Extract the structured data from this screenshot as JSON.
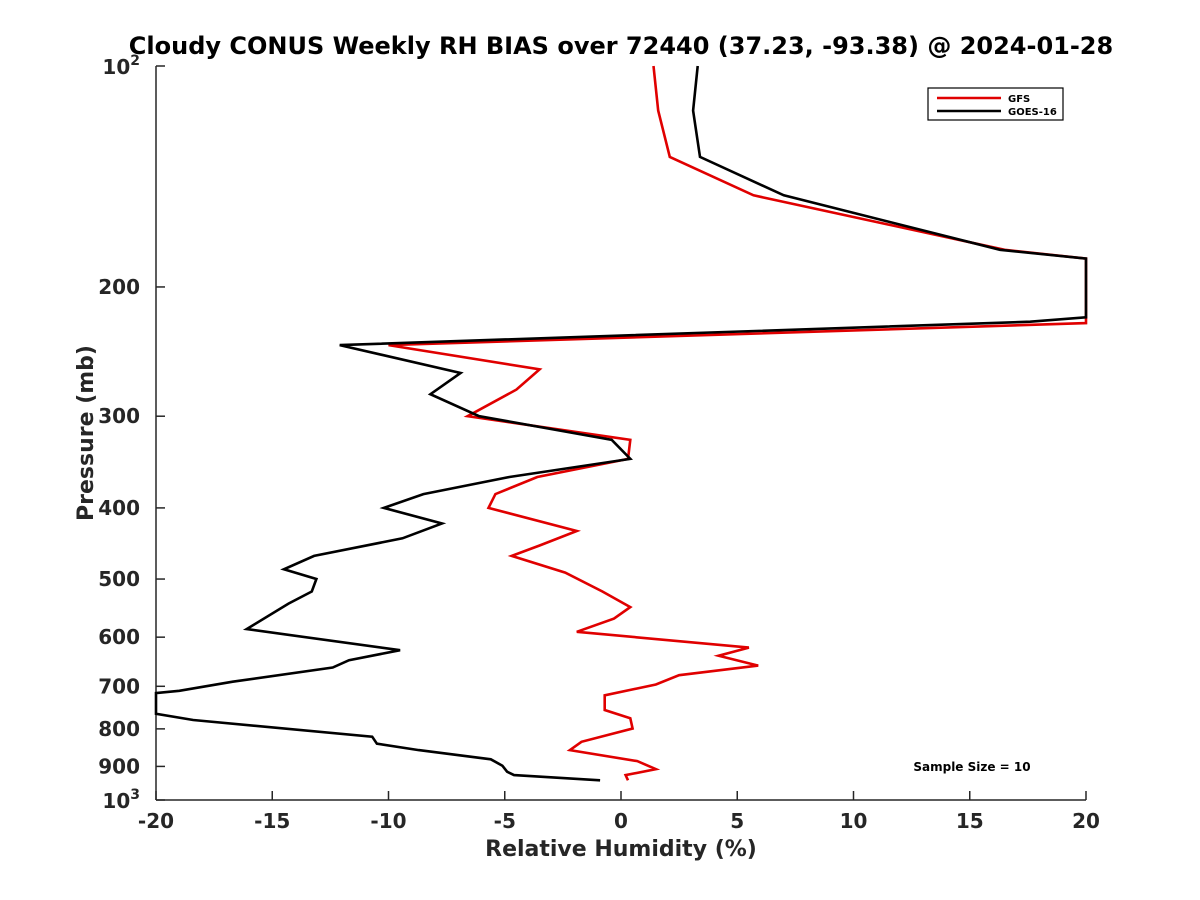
{
  "chart_data": {
    "type": "line",
    "title": "Cloudy CONUS Weekly RH BIAS over 72440 (37.23, -93.38) @ 2024-01-28",
    "xlabel": "Relative Humidity (%)",
    "ylabel": "Pressure (mb)",
    "xlim": [
      -20,
      20
    ],
    "ylim": [
      100,
      1000
    ],
    "yscale": "log",
    "y_reversed": true,
    "grid": false,
    "legend_position": "top-right",
    "x_ticks": [
      -20,
      -15,
      -10,
      -5,
      0,
      5,
      10,
      15,
      20
    ],
    "x_tick_labels": [
      "-20",
      "-15",
      "-10",
      "-5",
      "0",
      "5",
      "10",
      "15",
      "20"
    ],
    "y_ticks": [
      100,
      200,
      300,
      400,
      500,
      600,
      700,
      800,
      900,
      1000
    ],
    "y_tick_labels": [
      {
        "base": "10",
        "exp": "2"
      },
      {
        "base": "200",
        "exp": ""
      },
      {
        "base": "300",
        "exp": ""
      },
      {
        "base": "400",
        "exp": ""
      },
      {
        "base": "500",
        "exp": ""
      },
      {
        "base": "600",
        "exp": ""
      },
      {
        "base": "700",
        "exp": ""
      },
      {
        "base": "800",
        "exp": ""
      },
      {
        "base": "900",
        "exp": ""
      },
      {
        "base": "10",
        "exp": "3"
      }
    ],
    "annotation": "Sample Size = 10",
    "series": [
      {
        "name": "GFS",
        "color": "#e00000",
        "points": [
          [
            1.4,
            100
          ],
          [
            1.6,
            115
          ],
          [
            2.1,
            133
          ],
          [
            5.7,
            150
          ],
          [
            16.5,
            178
          ],
          [
            20.0,
            183
          ],
          [
            20.0,
            224
          ],
          [
            -10.0,
            240
          ],
          [
            -3.5,
            259
          ],
          [
            -4.5,
            276
          ],
          [
            -6.6,
            300
          ],
          [
            0.4,
            323
          ],
          [
            0.3,
            343
          ],
          [
            -3.6,
            363
          ],
          [
            -5.4,
            383
          ],
          [
            -5.7,
            400
          ],
          [
            -1.9,
            430
          ],
          [
            -3.5,
            450
          ],
          [
            -4.7,
            465
          ],
          [
            -2.4,
            490
          ],
          [
            -0.8,
            520
          ],
          [
            0.4,
            546
          ],
          [
            -0.3,
            566
          ],
          [
            -1.9,
            590
          ],
          [
            5.5,
            620
          ],
          [
            4.2,
            636
          ],
          [
            5.9,
            656
          ],
          [
            2.5,
            676
          ],
          [
            1.5,
            696
          ],
          [
            -0.7,
            720
          ],
          [
            -0.7,
            754
          ],
          [
            0.4,
            774
          ],
          [
            0.5,
            799
          ],
          [
            -1.7,
            833
          ],
          [
            -2.2,
            855
          ],
          [
            0.7,
            885
          ],
          [
            1.5,
            908
          ],
          [
            0.2,
            925
          ],
          [
            0.3,
            940
          ]
        ]
      },
      {
        "name": "GOES-16",
        "color": "#000000",
        "points": [
          [
            3.3,
            100
          ],
          [
            3.1,
            115
          ],
          [
            3.4,
            133
          ],
          [
            7.0,
            150
          ],
          [
            16.3,
            178
          ],
          [
            20.0,
            183
          ],
          [
            20.0,
            220
          ],
          [
            17.6,
            223
          ],
          [
            -12.1,
            240
          ],
          [
            -6.9,
            262
          ],
          [
            -8.2,
            280
          ],
          [
            -6.1,
            300
          ],
          [
            -0.4,
            323
          ],
          [
            0.4,
            343
          ],
          [
            -4.8,
            363
          ],
          [
            -8.5,
            383
          ],
          [
            -10.2,
            400
          ],
          [
            -7.7,
            420
          ],
          [
            -9.4,
            440
          ],
          [
            -13.2,
            465
          ],
          [
            -14.5,
            485
          ],
          [
            -13.1,
            500
          ],
          [
            -13.3,
            520
          ],
          [
            -14.3,
            540
          ],
          [
            -16.1,
            585
          ],
          [
            -9.5,
            625
          ],
          [
            -11.7,
            645
          ],
          [
            -12.4,
            660
          ],
          [
            -16.7,
            690
          ],
          [
            -19.0,
            710
          ],
          [
            -20.0,
            715
          ],
          [
            -20.0,
            763
          ],
          [
            -18.4,
            778
          ],
          [
            -10.7,
            820
          ],
          [
            -10.5,
            838
          ],
          [
            -8.7,
            855
          ],
          [
            -5.6,
            880
          ],
          [
            -5.1,
            898
          ],
          [
            -4.9,
            915
          ],
          [
            -4.6,
            925
          ],
          [
            -0.9,
            940
          ]
        ]
      }
    ]
  }
}
